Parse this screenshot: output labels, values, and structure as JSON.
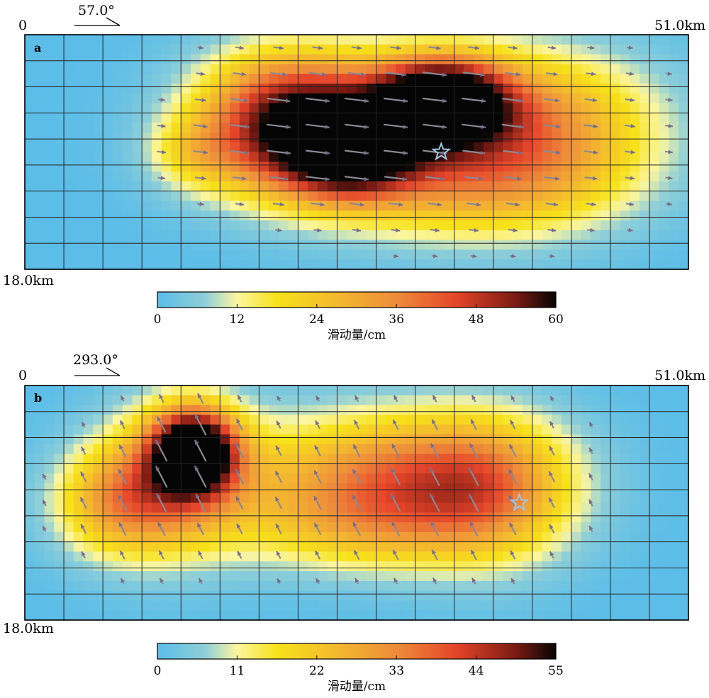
{
  "chart_data": [
    {
      "type": "heatmap",
      "panel_label": "a",
      "strike_label": "57.0°",
      "origin_label": "0",
      "length_label": "51.0km",
      "depth_label": "18.0km",
      "x_range_km": [
        0,
        51
      ],
      "depth_range_km": [
        0,
        18
      ],
      "grid": true,
      "colorbar": {
        "title": "滑动量/cm",
        "ticks": [
          "0",
          "12",
          "24",
          "36",
          "48",
          "60"
        ],
        "range": [
          0,
          60
        ]
      },
      "peak_slip_cm": 60,
      "hypocenter_km": {
        "x": 32,
        "depth": 9
      },
      "slip_patches": [
        {
          "x": 32,
          "depth": 5,
          "slip": 58,
          "sx": 3.5,
          "sy": 2.2
        },
        {
          "x": 25,
          "depth": 9,
          "slip": 40,
          "sx": 3.5,
          "sy": 2.5
        },
        {
          "x": 20,
          "depth": 5,
          "slip": 30,
          "sx": 4.5,
          "sy": 3.0
        },
        {
          "x": 20,
          "depth": 9,
          "slip": 24,
          "sx": 5.0,
          "sy": 3.0
        },
        {
          "x": 28,
          "depth": 7,
          "slip": 28,
          "sx": 8.0,
          "sy": 4.0
        },
        {
          "x": 40,
          "depth": 7,
          "slip": 26,
          "sx": 6.5,
          "sy": 4.0
        },
        {
          "x": 35,
          "depth": 12,
          "slip": 18,
          "sx": 7.5,
          "sy": 3.0
        },
        {
          "x": 13,
          "depth": 9,
          "slip": 12,
          "sx": 2.5,
          "sy": 2.0
        }
      ]
    },
    {
      "type": "heatmap",
      "panel_label": "b",
      "strike_label": "293.0°",
      "origin_label": "0",
      "length_label": "51.0km",
      "depth_label": "18.0km",
      "x_range_km": [
        0,
        51
      ],
      "depth_range_km": [
        0,
        18
      ],
      "grid": true,
      "colorbar": {
        "title": "滑动量/cm",
        "ticks": [
          "0",
          "11",
          "22",
          "33",
          "44",
          "55"
        ],
        "range": [
          0,
          55
        ]
      },
      "peak_slip_cm": 55,
      "hypocenter_km": {
        "x": 38,
        "depth": 9
      },
      "slip_patches": [
        {
          "x": 13,
          "depth": 5,
          "slip": 55,
          "sx": 2.2,
          "sy": 2.2
        },
        {
          "x": 12,
          "depth": 7,
          "slip": 28,
          "sx": 4.0,
          "sy": 4.0
        },
        {
          "x": 7,
          "depth": 9,
          "slip": 24,
          "sx": 3.5,
          "sy": 3.0
        },
        {
          "x": 28,
          "depth": 7,
          "slip": 32,
          "sx": 7.5,
          "sy": 3.5
        },
        {
          "x": 36,
          "depth": 8,
          "slip": 22,
          "sx": 4.5,
          "sy": 4.0
        },
        {
          "x": 26,
          "depth": 11,
          "slip": 14,
          "sx": 7.0,
          "sy": 2.5
        }
      ]
    }
  ]
}
